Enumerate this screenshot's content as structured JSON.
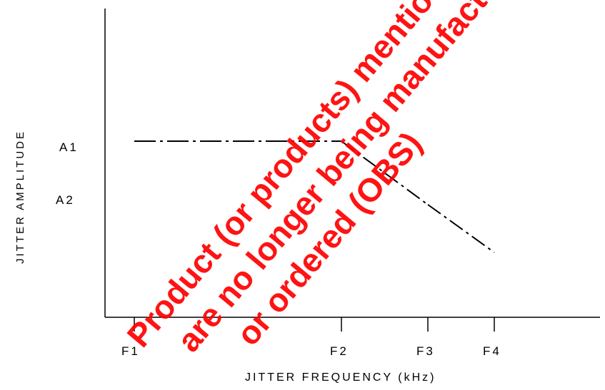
{
  "chart_data": {
    "type": "line",
    "xlabel": "JITTER FREQUENCY (kHz)",
    "ylabel": "JITTER AMPLITUDE",
    "x_ticks": [
      "F1",
      "F2",
      "F3",
      "F4"
    ],
    "y_ticks": [
      "A1",
      "A2"
    ],
    "grid": false,
    "series": [
      {
        "points": [
          {
            "x": "F1",
            "y": "A1"
          },
          {
            "x": "F2",
            "y": "A1"
          },
          {
            "x": "F3",
            "y": "A2"
          },
          {
            "x": "F4",
            "y": "below A2"
          }
        ]
      }
    ]
  },
  "watermark": {
    "line1": "Product (or products) mentioned in this",
    "line2": "are no longer being manufactured",
    "line3": "or ordered (OBS)"
  },
  "colors": {
    "axis": "#000000",
    "line": "#000000",
    "watermark": "#ff0000"
  }
}
